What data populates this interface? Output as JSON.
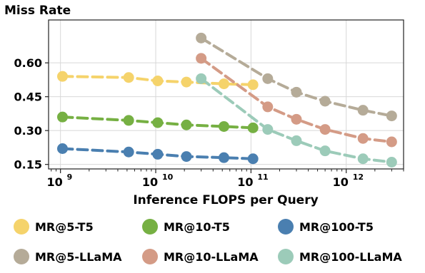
{
  "chart_data": {
    "type": "line",
    "ylabel": "Miss Rate",
    "xlabel": "Inference FLOPS per Query",
    "x_scale": "log",
    "xlim": [
      750000000.0,
      4000000000000.0
    ],
    "ylim": [
      0.13,
      0.79
    ],
    "y_ticks": [
      0.15,
      0.3,
      0.45,
      0.6
    ],
    "y_tick_labels": [
      "0.15",
      "0.30",
      "0.45",
      "0.60"
    ],
    "x_ticks": [
      {
        "value": 1000000000.0,
        "base": "10",
        "exp": "9"
      },
      {
        "value": 10000000000.0,
        "base": "10",
        "exp": "10"
      },
      {
        "value": 100000000000.0,
        "base": "10",
        "exp": "11"
      },
      {
        "value": 1000000000000.0,
        "base": "10",
        "exp": "12"
      }
    ],
    "grid": true,
    "legend_position": "bottom",
    "series": [
      {
        "name": "MR@5-T5",
        "color": "#f5d36b",
        "x": [
          1050000000.0,
          5200000000.0,
          10500000000.0,
          21000000000.0,
          52000000000.0,
          105000000000.0
        ],
        "y": [
          0.54,
          0.535,
          0.52,
          0.515,
          0.507,
          0.503
        ]
      },
      {
        "name": "MR@10-T5",
        "color": "#76b043",
        "x": [
          1050000000.0,
          5200000000.0,
          10500000000.0,
          21000000000.0,
          52000000000.0,
          105000000000.0
        ],
        "y": [
          0.36,
          0.345,
          0.335,
          0.325,
          0.318,
          0.312
        ]
      },
      {
        "name": "MR@100-T5",
        "color": "#4a7fb0",
        "x": [
          1050000000.0,
          5200000000.0,
          10500000000.0,
          21000000000.0,
          52000000000.0,
          105000000000.0
        ],
        "y": [
          0.22,
          0.205,
          0.195,
          0.185,
          0.18,
          0.175
        ]
      },
      {
        "name": "MR@5-LLaMA",
        "color": "#b5ab98",
        "x": [
          30000000000.0,
          150000000000.0,
          300000000000.0,
          600000000000.0,
          1500000000000.0,
          3000000000000.0
        ],
        "y": [
          0.71,
          0.53,
          0.47,
          0.43,
          0.39,
          0.365
        ]
      },
      {
        "name": "MR@10-LLaMA",
        "color": "#d49b86",
        "x": [
          30000000000.0,
          150000000000.0,
          300000000000.0,
          600000000000.0,
          1500000000000.0,
          3000000000000.0
        ],
        "y": [
          0.62,
          0.405,
          0.35,
          0.305,
          0.265,
          0.25
        ]
      },
      {
        "name": "MR@100-LLaMA",
        "color": "#9ccbb9",
        "x": [
          30000000000.0,
          150000000000.0,
          300000000000.0,
          600000000000.0,
          1500000000000.0,
          3000000000000.0
        ],
        "y": [
          0.53,
          0.305,
          0.255,
          0.21,
          0.175,
          0.16
        ]
      }
    ]
  }
}
